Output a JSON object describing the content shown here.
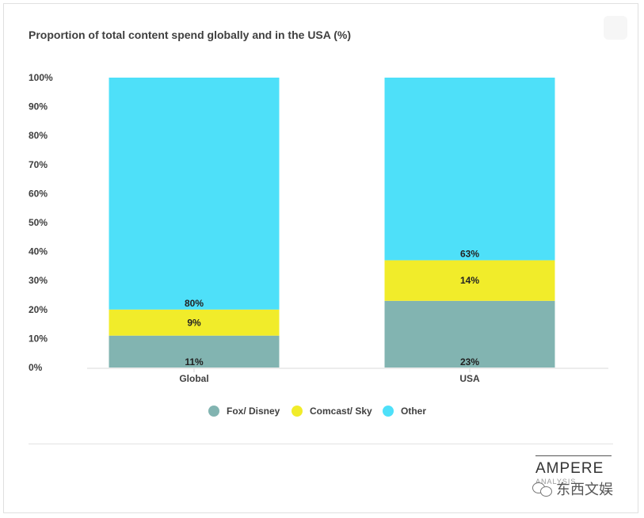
{
  "title": "Proportion of total content spend globally and in the USA (%)",
  "chart_data": {
    "type": "bar",
    "stacked": true,
    "title": "Proportion of total content spend globally and in the USA (%)",
    "categories": [
      "Global",
      "USA"
    ],
    "series": [
      {
        "name": "Fox/ Disney",
        "values": [
          11,
          23
        ],
        "labels": [
          "11%",
          "23%"
        ],
        "color": "#82b4b1"
      },
      {
        "name": "Comcast/ Sky",
        "values": [
          9,
          14
        ],
        "labels": [
          "9%",
          "14%"
        ],
        "color": "#f1ec2a"
      },
      {
        "name": "Other",
        "values": [
          80,
          63
        ],
        "labels": [
          "80%",
          "63%"
        ],
        "color": "#4ee0f9"
      }
    ],
    "y_ticks": [
      "0%",
      "10%",
      "20%",
      "30%",
      "40%",
      "50%",
      "60%",
      "70%",
      "80%",
      "90%",
      "100%"
    ],
    "ylim": [
      0,
      100
    ],
    "grid": false,
    "legend": "bottom-center"
  },
  "logo": {
    "name": "AMPERE",
    "sub": "ANALYSIS"
  },
  "watermark": {
    "text": "东西文娱"
  },
  "colors": {
    "text": "#3f3f3f",
    "axis": "#d9d9d9"
  }
}
